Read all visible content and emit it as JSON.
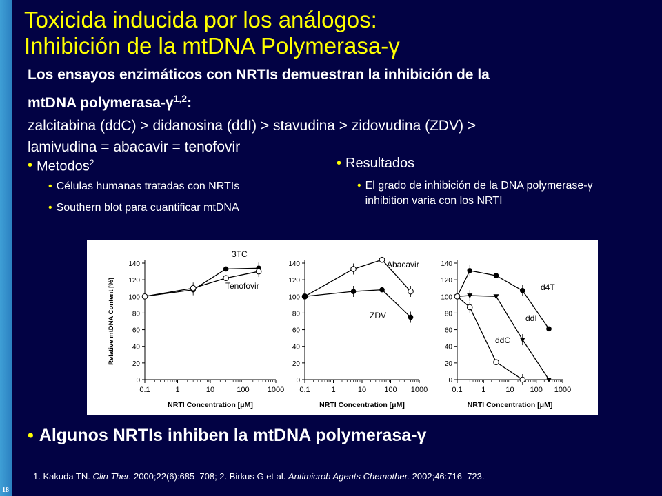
{
  "slide": {
    "number": "18"
  },
  "title": {
    "line1": "Toxicida inducida por los análogos:",
    "line2": "Inhibición de la mtDNA Polymerasa-γ"
  },
  "intro": {
    "heading_part1": "Los ensayos enzimáticos con NRTIs demuestran la inhibición de la",
    "heading_part2": "mtDNA polymerasa-γ",
    "heading_sup": "1,2",
    "heading_colon": ":",
    "ranking_line1": "zalcitabina (ddC) > didanosina (ddI) > stavudina > zidovudina (ZDV) >",
    "ranking_line2": "lamivudina = abacavir = tenofovir"
  },
  "methods": {
    "label": "Metodos",
    "sup": "2",
    "items": [
      "Células humanas tratadas con NRTIs",
      "Southern blot para cuantificar mtDNA"
    ]
  },
  "results": {
    "label": "Resultados",
    "items": [
      "El grado de inhibición de la DNA polymerase-γ inhibition varia con los NRTI"
    ]
  },
  "summary": "Algunos NRTIs inhiben la  mtDNA polymerasa-γ",
  "references": {
    "r1_pre": "1. Kakuda TN. ",
    "r1_journal": "Clin Ther.",
    "r1_post": " 2000;22(6):685–708; 2. Birkus G et al. ",
    "r2_journal": "Antimicrob Agents Chemother.",
    "r2_post": " 2002;46:716–723."
  },
  "colors": {
    "background": "#020244",
    "title": "#ffff00",
    "bullet": "#ffff00",
    "sidebar": "#3f9fd6"
  },
  "chart_data": [
    {
      "type": "line",
      "x_scale": "log",
      "xlim": [
        0.1,
        1000
      ],
      "ylim": [
        0,
        140
      ],
      "xlabel": "NRTI Concentration [μM]",
      "ylabel": "Relative mtDNA Content [%]",
      "x_ticks": [
        "0.1",
        "1",
        "10",
        "100",
        "1000"
      ],
      "y_ticks": [
        "0",
        "20",
        "40",
        "60",
        "80",
        "100",
        "120",
        "140"
      ],
      "series": [
        {
          "name": "3TC",
          "marker": "filled-circle",
          "x": [
            0.1,
            3,
            30,
            300
          ],
          "y": [
            100,
            108,
            133,
            134
          ]
        },
        {
          "name": "Tenofovir",
          "marker": "open-circle",
          "x": [
            0.1,
            3,
            30,
            300
          ],
          "y": [
            100,
            110,
            122,
            130
          ]
        }
      ]
    },
    {
      "type": "line",
      "x_scale": "log",
      "xlim": [
        0.1,
        1000
      ],
      "ylim": [
        0,
        140
      ],
      "xlabel": "NRTI Concentration [μM]",
      "x_ticks": [
        "0.1",
        "1",
        "10",
        "100",
        "1000"
      ],
      "y_ticks": [
        "0",
        "20",
        "40",
        "60",
        "80",
        "100",
        "120",
        "140"
      ],
      "series": [
        {
          "name": "Abacavir",
          "marker": "open-circle",
          "x": [
            0.1,
            5,
            50,
            500
          ],
          "y": [
            100,
            133,
            144,
            106
          ]
        },
        {
          "name": "ZDV",
          "marker": "filled-circle",
          "x": [
            0.1,
            5,
            50,
            500
          ],
          "y": [
            100,
            106,
            108,
            75
          ]
        }
      ]
    },
    {
      "type": "line",
      "x_scale": "log",
      "xlim": [
        0.1,
        1000
      ],
      "ylim": [
        0,
        140
      ],
      "xlabel": "NRTI Concentration [μM]",
      "x_ticks": [
        "0.1",
        "1",
        "10",
        "100",
        "1000"
      ],
      "y_ticks": [
        "0",
        "20",
        "40",
        "60",
        "80",
        "100",
        "120",
        "140"
      ],
      "series": [
        {
          "name": "d4T",
          "marker": "filled-circle",
          "x": [
            0.1,
            0.3,
            3,
            30,
            300
          ],
          "y": [
            100,
            131,
            125,
            107,
            61
          ]
        },
        {
          "name": "ddI",
          "marker": "filled-triangle",
          "x": [
            0.1,
            0.3,
            3,
            30,
            300
          ],
          "y": [
            100,
            101,
            100,
            48,
            0
          ]
        },
        {
          "name": "ddC",
          "marker": "open-circle",
          "x": [
            0.1,
            0.3,
            3,
            30
          ],
          "y": [
            100,
            87,
            21,
            0
          ]
        }
      ]
    }
  ]
}
